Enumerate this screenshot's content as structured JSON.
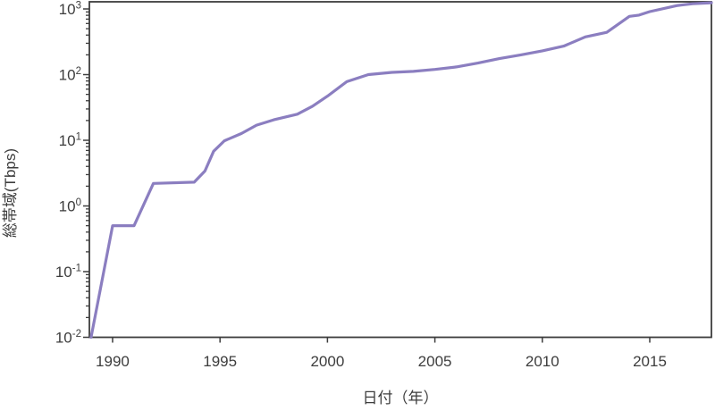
{
  "figure": {
    "background": "#ffffff"
  },
  "chart_data": {
    "type": "line",
    "title": "",
    "xlabel": "日付（年）",
    "ylabel": "総帯域(Tbps)",
    "x_ticks": [
      1990,
      1995,
      2000,
      2005,
      2010,
      2015
    ],
    "y_tick_exponents": [
      -2,
      -1,
      0,
      1,
      2,
      3
    ],
    "y_tick_base": "10",
    "x_range": [
      1988.92,
      2017.87
    ],
    "y_range": [
      0.01,
      1285
    ],
    "y_scale": "log",
    "grid": false,
    "legend": false,
    "line_color": "#8b7ec0",
    "axis_color": "#3d3d3d",
    "series": [
      {
        "points": [
          [
            1989.0,
            0.01
          ],
          [
            1990.0,
            0.5
          ],
          [
            1991.0,
            0.5
          ],
          [
            1991.9,
            2.2
          ],
          [
            1993.8,
            2.3
          ],
          [
            1994.3,
            3.4
          ],
          [
            1994.7,
            6.8
          ],
          [
            1995.2,
            9.8
          ],
          [
            1996.0,
            12.7
          ],
          [
            1996.7,
            17
          ],
          [
            1997.5,
            20.5
          ],
          [
            1998.6,
            25
          ],
          [
            1999.3,
            33
          ],
          [
            2000.0,
            47
          ],
          [
            2000.9,
            78
          ],
          [
            2001.9,
            100
          ],
          [
            2003.0,
            108
          ],
          [
            2004.0,
            112
          ],
          [
            2005.0,
            120
          ],
          [
            2006.0,
            131
          ],
          [
            2007.0,
            150
          ],
          [
            2008.0,
            175
          ],
          [
            2009.0,
            200
          ],
          [
            2010.0,
            230
          ],
          [
            2011.0,
            272
          ],
          [
            2012.0,
            375
          ],
          [
            2013.0,
            440
          ],
          [
            2014.05,
            770
          ],
          [
            2014.5,
            805
          ],
          [
            2015.0,
            910
          ],
          [
            2016.0,
            1075
          ],
          [
            2016.3,
            1130
          ],
          [
            2017.0,
            1200
          ],
          [
            2017.87,
            1240
          ]
        ]
      }
    ]
  }
}
